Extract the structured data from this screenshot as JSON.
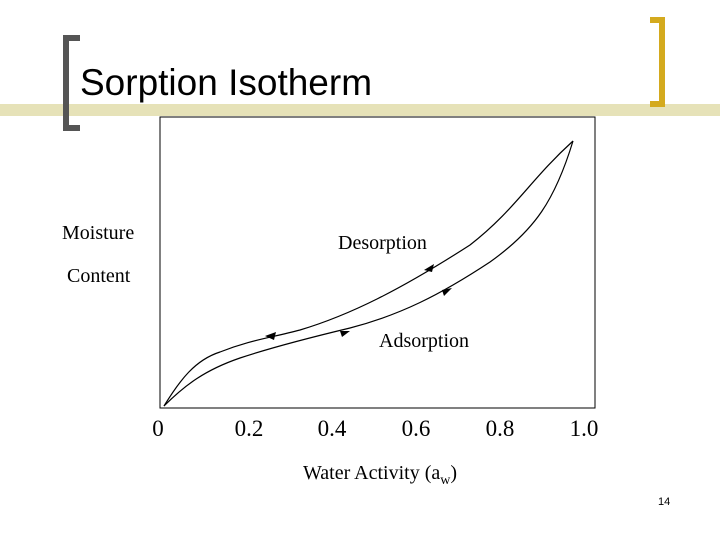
{
  "slide": {
    "title": "Sorption Isotherm",
    "page_number": "14",
    "accent_color": "#d4aa1e",
    "bar_color": "#e6e2b8"
  },
  "diagram": {
    "y_label_line1": "Moisture",
    "y_label_line2": "Content",
    "x_label": "Water Activity (a",
    "x_label_sub": "w",
    "x_label_end": ")",
    "curve_labels": {
      "desorption": "Desorption",
      "adsorption": "Adsorption"
    },
    "x_ticks": [
      "0",
      "0.2",
      "0.4",
      "0.6",
      "0.8",
      "1.0"
    ]
  }
}
